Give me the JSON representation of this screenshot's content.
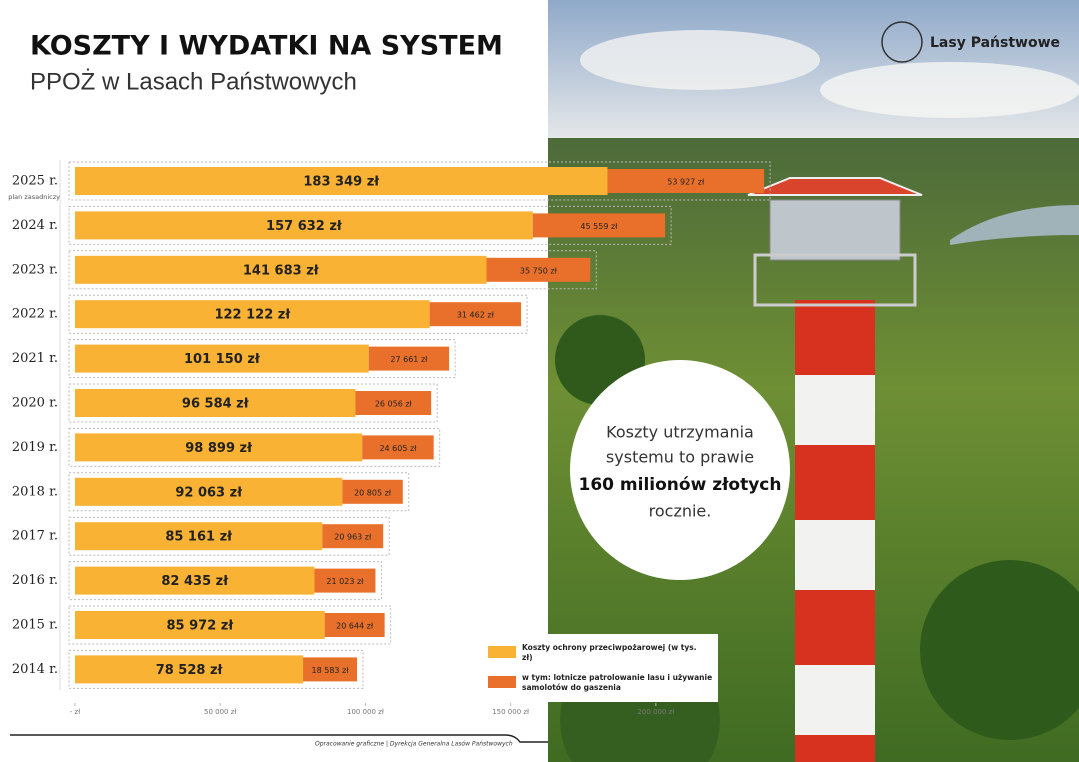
{
  "chart_data": {
    "type": "stacked-bar-horizontal",
    "title": "KOSZTY I WYDATKI NA SYSTEM",
    "subtitle": "PPOŻ w Lasach Państwowych",
    "categories": [
      "2025 r.",
      "2024 r.",
      "2023 r.",
      "2022 r.",
      "2021 r.",
      "2020 r.",
      "2019 r.",
      "2018 r.",
      "2017 r.",
      "2016 r.",
      "2015 r.",
      "2014 r."
    ],
    "category_note": "plan zasadniczy",
    "series": [
      {
        "name": "Koszty ochrony przeciwpożarowej (w tys. zł)",
        "color": "#f9b233",
        "values": [
          183349,
          157632,
          141683,
          122122,
          101150,
          96584,
          98899,
          92063,
          85161,
          82435,
          85972,
          78528
        ],
        "value_labels": [
          "183 349 zł",
          "157 632 zł",
          "141 683 zł",
          "122 122 zł",
          "101 150 zł",
          "96 584 zł",
          "98 899 zł",
          "92 063 zł",
          "85 161 zł",
          "82 435 zł",
          "85 972 zł",
          "78 528 zł"
        ]
      },
      {
        "name": "w tym: lotnicze patrolowanie lasu i używanie samolotów do gaszenia",
        "color": "#e8702a",
        "values": [
          53927,
          45559,
          35750,
          31462,
          27661,
          26056,
          24605,
          20805,
          20963,
          21023,
          20644,
          18583
        ],
        "value_labels": [
          "53 927 zł",
          "45 559 zł",
          "35 750 zł",
          "31 462 zł",
          "27 661 zł",
          "26 056 zł",
          "24 605 zł",
          "20 805 zł",
          "20 963 zł",
          "21 023 zł",
          "20 644 zł",
          "18 583 zł"
        ]
      }
    ],
    "xlim": [
      0,
      240000
    ],
    "xticks": [
      {
        "value": 0,
        "label": "- zł"
      },
      {
        "value": 50000,
        "label": "50 000 zł"
      },
      {
        "value": 100000,
        "label": "100 000 zł"
      },
      {
        "value": 150000,
        "label": "150 000 zł"
      },
      {
        "value": 200000,
        "label": "200 000 zł"
      }
    ],
    "callout": {
      "line1": "Koszty utrzymania",
      "line2": "systemu to prawie",
      "highlight": "160 milionów złotych",
      "line3": "rocznie."
    },
    "logo": "Lasy Państwowe",
    "credit": "Opracowanie graficzne | Dyrekcja Generalna Lasów Państwowych"
  }
}
